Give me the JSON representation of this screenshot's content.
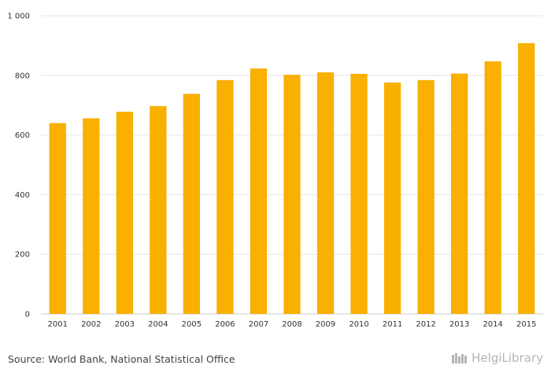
{
  "chart_data": {
    "type": "bar",
    "categories": [
      "2001",
      "2002",
      "2003",
      "2004",
      "2005",
      "2006",
      "2007",
      "2008",
      "2009",
      "2010",
      "2011",
      "2012",
      "2013",
      "2014",
      "2015"
    ],
    "values": [
      640,
      656,
      678,
      697,
      738,
      784,
      823,
      802,
      810,
      805,
      776,
      784,
      806,
      847,
      908
    ],
    "ylim": [
      0,
      1000
    ],
    "yticks": [
      0,
      200,
      400,
      600,
      800,
      1000
    ],
    "ytick_labels": [
      "0",
      "200",
      "400",
      "600",
      "800",
      "1 000"
    ],
    "title": "",
    "xlabel": "",
    "ylabel": "",
    "grid": true
  },
  "colors": {
    "bar": "#f9b000",
    "grid": "#e6e6e6",
    "axis": "#cccccc"
  },
  "footer": {
    "source": "Source: World Bank, National Statistical Office",
    "brand": "HelgiLibrary"
  }
}
